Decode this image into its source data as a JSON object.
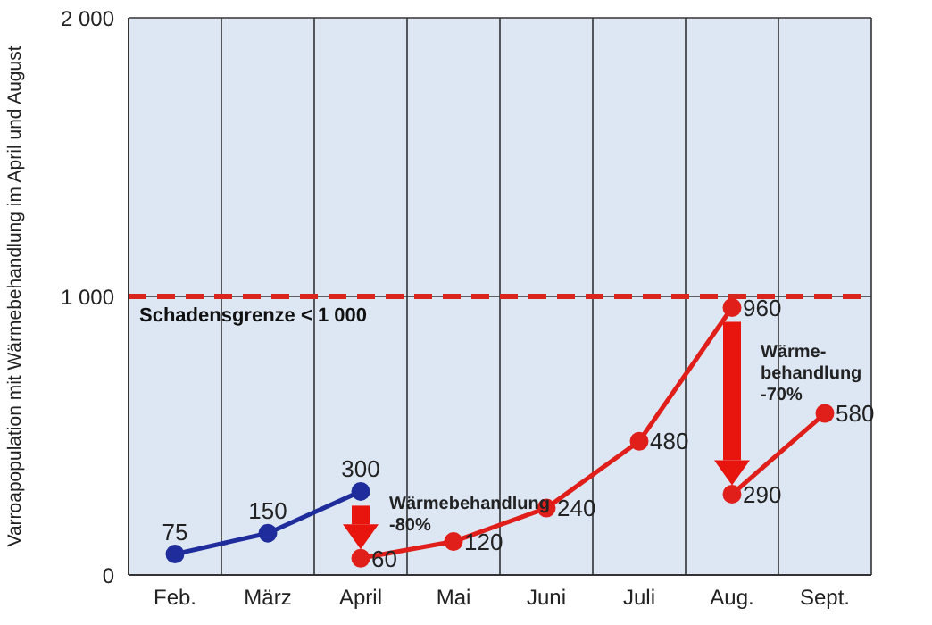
{
  "chart_data": {
    "type": "line",
    "ylabel": "Varroapopulation mit Wärmebehandlung im April und August",
    "categories": [
      "Feb.",
      "März",
      "April",
      "Mai",
      "Juni",
      "Juli",
      "Aug.",
      "Sept."
    ],
    "series": [
      {
        "color": "#1f2d9c",
        "values": [
          75,
          150,
          300,
          null,
          null,
          null,
          null,
          null
        ]
      },
      {
        "color": "#e01f1a",
        "values": [
          null,
          null,
          60,
          120,
          240,
          480,
          960,
          null
        ]
      },
      {
        "color": "#e01f1a",
        "values": [
          null,
          null,
          null,
          null,
          null,
          null,
          290,
          580
        ]
      }
    ],
    "ylim": [
      0,
      2000
    ],
    "yticks": [
      {
        "value": 0,
        "label": "0"
      },
      {
        "value": 1000,
        "label": "1 000"
      },
      {
        "value": 2000,
        "label": "2 000"
      }
    ],
    "grid": true,
    "marker": "circle",
    "line_style": "solid",
    "data_labels": true,
    "ref_lines": [
      {
        "axis": "y",
        "value": 1000,
        "label": "Schadensgrenze < 1 000",
        "color": "#d9261c",
        "line_style": "dashed"
      }
    ],
    "annotations": [
      "Wärmebehandlung\n-80%",
      "Wärme-\nbehandlung\n-70%"
    ]
  }
}
